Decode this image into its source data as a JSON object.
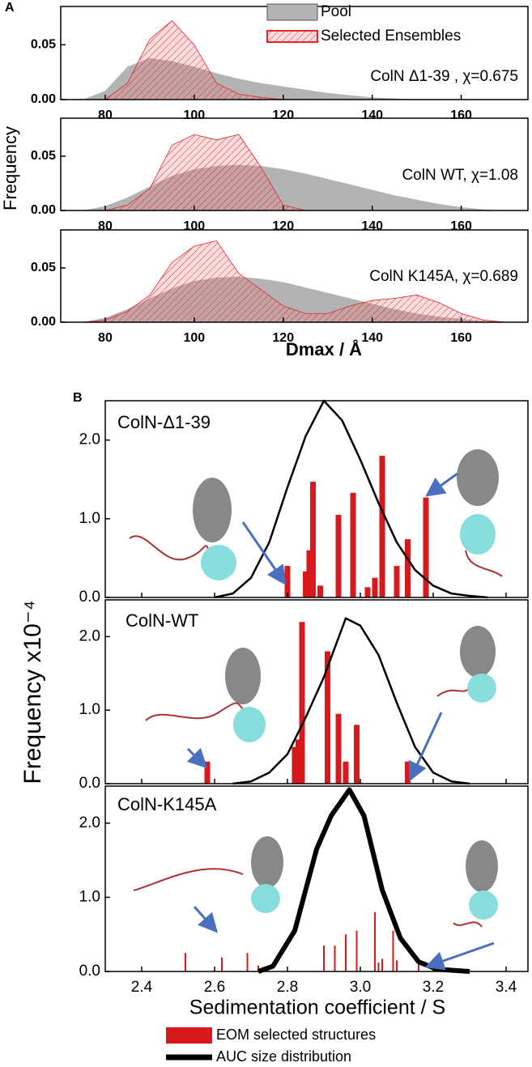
{
  "chart_data": [
    {
      "type": "area",
      "panel_label": "A",
      "ylabel": "Frequency",
      "annotation": "ColN Δ1-39 , χ=0.675",
      "xlim": [
        70,
        175
      ],
      "xticks": [
        80,
        100,
        120,
        140,
        160
      ],
      "ylim": [
        0,
        0.085
      ],
      "yticks": [
        {
          "value": 0,
          "label": "0.00"
        },
        {
          "value": 0.05,
          "label": "0.05"
        }
      ],
      "x": [
        75,
        80,
        85,
        90,
        95,
        100,
        105,
        110,
        115,
        120,
        125,
        130,
        135,
        140,
        145,
        150,
        155,
        160,
        165,
        170
      ],
      "series": [
        {
          "name": "Pool",
          "color": "#b3b3b3",
          "values": [
            0,
            0.008,
            0.03,
            0.038,
            0.035,
            0.03,
            0.024,
            0.019,
            0.015,
            0.012,
            0.009,
            0.006,
            0.004,
            0.002,
            0.001,
            0,
            0,
            0,
            0,
            0
          ]
        },
        {
          "name": "Selected Ensembles",
          "color": "#e0262a",
          "values": [
            0,
            0,
            0.015,
            0.055,
            0.072,
            0.05,
            0.015,
            0.005,
            0.002,
            0,
            0,
            0,
            0,
            0,
            0,
            0,
            0,
            0,
            0,
            0
          ]
        }
      ]
    },
    {
      "type": "area",
      "annotation": "ColN WT, χ=1.08",
      "xlim": [
        70,
        175
      ],
      "xticks": [
        80,
        100,
        120,
        140,
        160
      ],
      "ylim": [
        0,
        0.085
      ],
      "yticks": [
        {
          "value": 0,
          "label": "0.00"
        },
        {
          "value": 0.05,
          "label": "0.05"
        }
      ],
      "x": [
        75,
        80,
        85,
        90,
        95,
        100,
        105,
        110,
        115,
        120,
        125,
        130,
        135,
        140,
        145,
        150,
        155,
        160,
        165,
        170
      ],
      "series": [
        {
          "color": "#b3b3b3",
          "values": [
            0,
            0.004,
            0.012,
            0.022,
            0.032,
            0.038,
            0.041,
            0.042,
            0.041,
            0.038,
            0.034,
            0.029,
            0.024,
            0.019,
            0.014,
            0.01,
            0.006,
            0.003,
            0.001,
            0
          ]
        },
        {
          "color": "#e0262a",
          "values": [
            0,
            0,
            0.005,
            0.02,
            0.06,
            0.07,
            0.065,
            0.07,
            0.04,
            0.005,
            0,
            0,
            0,
            0,
            0,
            0,
            0,
            0,
            0,
            0
          ]
        }
      ]
    },
    {
      "type": "area",
      "annotation": "ColN K145A, χ=0.689",
      "xlabel": "Dmax / Å",
      "xlim": [
        70,
        175
      ],
      "xticks": [
        80,
        100,
        120,
        140,
        160
      ],
      "ylim": [
        0,
        0.085
      ],
      "yticks": [
        {
          "value": 0,
          "label": "0.00"
        },
        {
          "value": 0.05,
          "label": "0.05"
        }
      ],
      "x": [
        75,
        80,
        85,
        90,
        95,
        100,
        105,
        110,
        115,
        120,
        125,
        130,
        135,
        140,
        145,
        150,
        155,
        160,
        165,
        170
      ],
      "series": [
        {
          "color": "#b3b3b3",
          "values": [
            0,
            0.004,
            0.012,
            0.022,
            0.031,
            0.038,
            0.041,
            0.042,
            0.04,
            0.037,
            0.032,
            0.027,
            0.022,
            0.017,
            0.012,
            0.008,
            0.005,
            0.003,
            0.001,
            0
          ]
        },
        {
          "color": "#e0262a",
          "values": [
            0,
            0.002,
            0.01,
            0.025,
            0.055,
            0.07,
            0.075,
            0.045,
            0.03,
            0.015,
            0.008,
            0.008,
            0.015,
            0.02,
            0.022,
            0.025,
            0.018,
            0.008,
            0.002,
            0
          ]
        }
      ]
    },
    {
      "type": "combo",
      "panel_label": "B",
      "annotation": "ColN-Δ1-39",
      "xlim": [
        2.3,
        3.46
      ],
      "ylim": [
        0,
        2.5
      ],
      "yticks": [
        {
          "value": 0,
          "label": "0.0"
        },
        {
          "value": 1,
          "label": "1.0"
        },
        {
          "value": 2,
          "label": "2.0"
        }
      ],
      "series": [
        {
          "name": "EOM selected structures",
          "type": "bar",
          "color": "#d7191c",
          "x": [
            2.8,
            2.85,
            2.86,
            2.87,
            2.89,
            2.94,
            2.98,
            3.02,
            3.04,
            3.06,
            3.1,
            3.13,
            3.18
          ],
          "values": [
            0.4,
            0.33,
            0.6,
            1.47,
            0.15,
            1.05,
            1.33,
            0.13,
            0.25,
            1.8,
            0.4,
            0.74,
            1.27
          ]
        },
        {
          "name": "AUC size distribution",
          "type": "line",
          "color": "#000000",
          "x": [
            2.6,
            2.65,
            2.7,
            2.75,
            2.8,
            2.85,
            2.9,
            2.95,
            3.0,
            3.05,
            3.1,
            3.15,
            3.2,
            3.25,
            3.3,
            3.35
          ],
          "values": [
            0,
            0.05,
            0.25,
            0.7,
            1.4,
            2.05,
            2.5,
            2.25,
            1.75,
            1.2,
            0.7,
            0.35,
            0.15,
            0.05,
            0.02,
            0
          ]
        }
      ]
    },
    {
      "type": "combo",
      "annotation": "ColN-WT",
      "ylabel": "Frequency x10⁻⁴",
      "xlim": [
        2.3,
        3.46
      ],
      "ylim": [
        0,
        2.5
      ],
      "yticks": [
        {
          "value": 0,
          "label": "0.0"
        },
        {
          "value": 1,
          "label": "1.0"
        },
        {
          "value": 2,
          "label": "2.0"
        }
      ],
      "series": [
        {
          "type": "bar",
          "color": "#d7191c",
          "x": [
            2.58,
            2.82,
            2.83,
            2.84,
            2.91,
            2.94,
            2.96,
            2.99,
            3.13
          ],
          "values": [
            0.3,
            0.5,
            0.6,
            2.2,
            1.8,
            0.95,
            0.3,
            0.8,
            0.3
          ]
        },
        {
          "type": "line",
          "color": "#000000",
          "x": [
            2.65,
            2.7,
            2.75,
            2.8,
            2.85,
            2.9,
            2.96,
            3.0,
            3.05,
            3.1,
            3.15,
            3.2,
            3.25,
            3.3
          ],
          "values": [
            0,
            0.03,
            0.15,
            0.4,
            0.9,
            1.45,
            2.25,
            2.15,
            1.75,
            1.1,
            0.5,
            0.15,
            0.03,
            0
          ]
        }
      ]
    },
    {
      "type": "combo",
      "annotation": "ColN-K145A",
      "xlabel": "Sedimentation coefficient / S",
      "xlim": [
        2.3,
        3.46
      ],
      "xticks": [
        2.4,
        2.6,
        2.8,
        {
          "value": 3,
          "label": "3.0"
        },
        3.2,
        3.4
      ],
      "ylim": [
        0,
        2.5
      ],
      "yticks": [
        {
          "value": 0,
          "label": "0.0"
        },
        {
          "value": 1,
          "label": "1.0"
        },
        {
          "value": 2,
          "label": "2.0"
        }
      ],
      "series": [
        {
          "type": "bar",
          "color": "#d7191c",
          "x": [
            2.52,
            2.62,
            2.69,
            2.72,
            2.9,
            2.93,
            2.96,
            2.99,
            3.04,
            3.05,
            3.06,
            3.09,
            3.1,
            3.16
          ],
          "values": [
            0.25,
            0.19,
            0.25,
            0.08,
            0.35,
            0.35,
            0.5,
            0.55,
            0.8,
            0.12,
            0.17,
            0.55,
            0.15,
            0.13
          ]
        },
        {
          "type": "line",
          "color": "#000000",
          "x": [
            2.72,
            2.76,
            2.82,
            2.88,
            2.92,
            2.97,
            3.01,
            3.06,
            3.11,
            3.16,
            3.21,
            3.3
          ],
          "values": [
            0,
            0.07,
            0.55,
            1.65,
            2.1,
            2.45,
            2.1,
            1.1,
            0.45,
            0.13,
            0.03,
            0
          ]
        }
      ]
    }
  ]
}
